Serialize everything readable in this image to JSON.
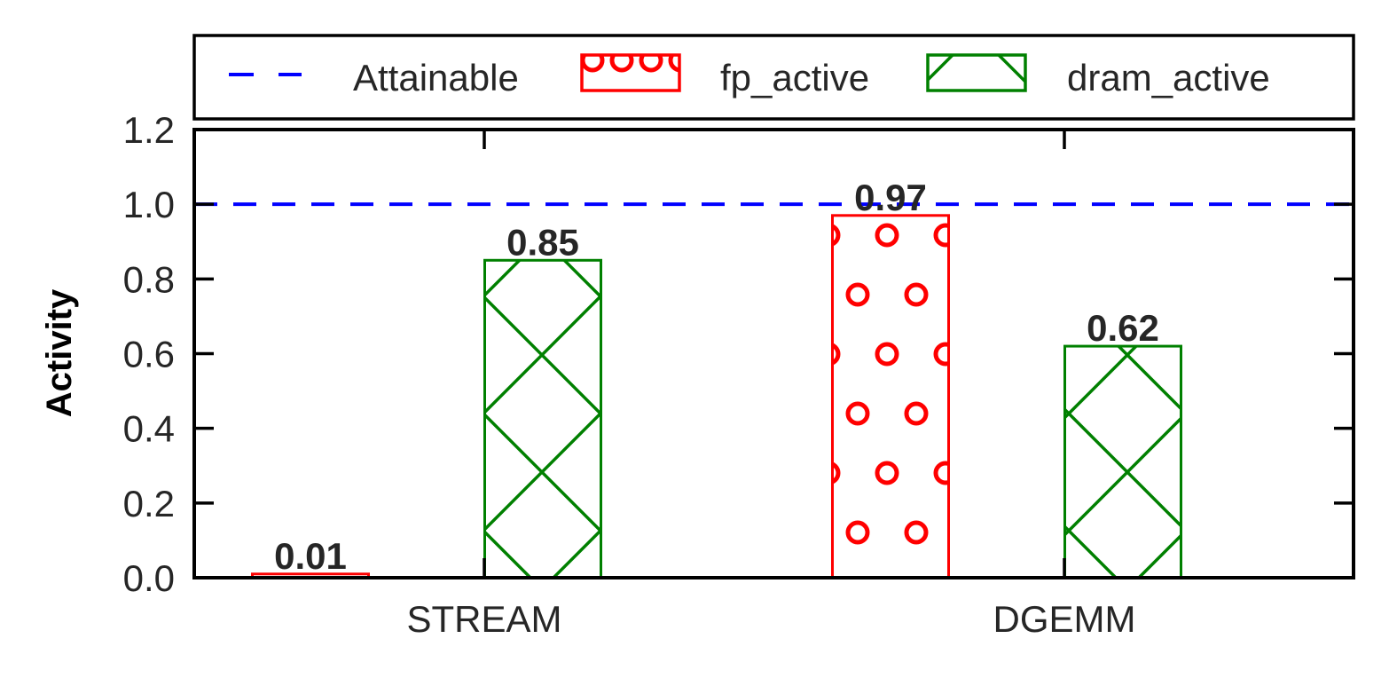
{
  "chart_data": {
    "type": "bar",
    "title": "",
    "xlabel": "",
    "ylabel": "Activity",
    "categories": [
      "STREAM",
      "DGEMM"
    ],
    "series": [
      {
        "name": "fp_active",
        "values": [
          0.01,
          0.97
        ],
        "value_labels": [
          "0.01",
          "0.97"
        ],
        "color": "#ff0000",
        "hatch": "circles"
      },
      {
        "name": "dram_active",
        "values": [
          0.85,
          0.62
        ],
        "value_labels": [
          "0.85",
          "0.62"
        ],
        "color": "#008000",
        "hatch": "crosshatch"
      }
    ],
    "reference_line": {
      "name": "Attainable",
      "y": 1.0,
      "color": "#0000ff",
      "style": "dashed"
    },
    "ylim": [
      0,
      1.2
    ],
    "yticks": [
      0.0,
      0.2,
      0.4,
      0.6,
      0.8,
      1.0,
      1.2
    ],
    "ytick_labels": [
      "0.0",
      "0.2",
      "0.4",
      "0.6",
      "0.8",
      "1.0",
      "1.2"
    ],
    "grid": false,
    "legend": {
      "placement": "top, above plot",
      "entries": [
        "Attainable",
        "fp_active",
        "dram_active"
      ]
    }
  }
}
